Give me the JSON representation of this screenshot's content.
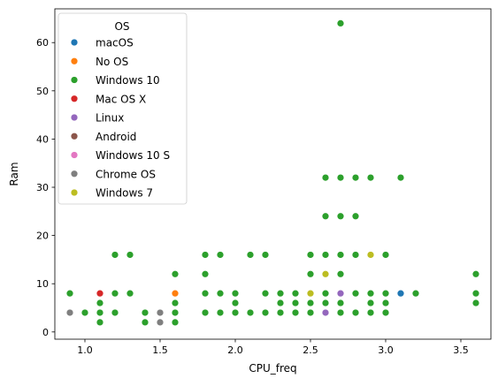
{
  "chart_data": {
    "type": "scatter",
    "title": "",
    "xlabel": "CPU_freq",
    "ylabel": "Ram",
    "xlim": [
      0.8,
      3.7
    ],
    "ylim": [
      -1.5,
      67
    ],
    "xticks": [
      1.0,
      1.5,
      2.0,
      2.5,
      3.0,
      3.5
    ],
    "xtick_labels": [
      "1.0",
      "1.5",
      "2.0",
      "2.5",
      "3.0",
      "3.5"
    ],
    "yticks": [
      0,
      10,
      20,
      30,
      40,
      50,
      60
    ],
    "ytick_labels": [
      "0",
      "10",
      "20",
      "30",
      "40",
      "50",
      "60"
    ],
    "grid": false,
    "legend": {
      "title": "OS",
      "placement": "top-left"
    },
    "series": [
      {
        "name": "macOS",
        "color": "#1f77b4",
        "points": [
          [
            3.1,
            8
          ]
        ]
      },
      {
        "name": "No OS",
        "color": "#ff7f0e",
        "points": [
          [
            1.6,
            8
          ],
          [
            2.5,
            8
          ]
        ]
      },
      {
        "name": "Windows 10",
        "color": "#2ca02c",
        "points": [
          [
            0.9,
            8
          ],
          [
            0.9,
            4
          ],
          [
            1.0,
            4
          ],
          [
            1.1,
            8
          ],
          [
            1.1,
            6
          ],
          [
            1.1,
            4
          ],
          [
            1.1,
            2
          ],
          [
            1.2,
            16
          ],
          [
            1.2,
            8
          ],
          [
            1.2,
            4
          ],
          [
            1.3,
            16
          ],
          [
            1.3,
            8
          ],
          [
            1.4,
            4
          ],
          [
            1.4,
            2
          ],
          [
            1.5,
            4
          ],
          [
            1.6,
            12
          ],
          [
            1.6,
            6
          ],
          [
            1.6,
            4
          ],
          [
            1.6,
            2
          ],
          [
            1.8,
            16
          ],
          [
            1.8,
            12
          ],
          [
            1.8,
            8
          ],
          [
            1.8,
            4
          ],
          [
            1.9,
            16
          ],
          [
            1.9,
            8
          ],
          [
            1.9,
            4
          ],
          [
            2.0,
            8
          ],
          [
            2.0,
            6
          ],
          [
            2.0,
            4
          ],
          [
            2.1,
            16
          ],
          [
            2.1,
            4
          ],
          [
            2.2,
            16
          ],
          [
            2.2,
            8
          ],
          [
            2.2,
            4
          ],
          [
            2.3,
            8
          ],
          [
            2.3,
            6
          ],
          [
            2.3,
            4
          ],
          [
            2.4,
            8
          ],
          [
            2.4,
            6
          ],
          [
            2.4,
            4
          ],
          [
            2.5,
            16
          ],
          [
            2.5,
            12
          ],
          [
            2.5,
            6
          ],
          [
            2.5,
            4
          ],
          [
            2.6,
            32
          ],
          [
            2.6,
            24
          ],
          [
            2.6,
            16
          ],
          [
            2.6,
            8
          ],
          [
            2.6,
            6
          ],
          [
            2.7,
            64
          ],
          [
            2.7,
            32
          ],
          [
            2.7,
            24
          ],
          [
            2.7,
            16
          ],
          [
            2.7,
            12
          ],
          [
            2.7,
            6
          ],
          [
            2.7,
            4
          ],
          [
            2.8,
            32
          ],
          [
            2.8,
            24
          ],
          [
            2.8,
            16
          ],
          [
            2.8,
            8
          ],
          [
            2.8,
            4
          ],
          [
            2.9,
            32
          ],
          [
            2.9,
            8
          ],
          [
            2.9,
            6
          ],
          [
            2.9,
            4
          ],
          [
            3.0,
            16
          ],
          [
            3.0,
            8
          ],
          [
            3.0,
            6
          ],
          [
            3.0,
            4
          ],
          [
            3.1,
            32
          ],
          [
            3.2,
            8
          ],
          [
            3.6,
            12
          ],
          [
            3.6,
            8
          ],
          [
            3.6,
            6
          ]
        ]
      },
      {
        "name": "Mac OS X",
        "color": "#d62728",
        "points": [
          [
            1.1,
            8
          ]
        ]
      },
      {
        "name": "Linux",
        "color": "#9467bd",
        "points": [
          [
            2.6,
            4
          ],
          [
            2.7,
            8
          ]
        ]
      },
      {
        "name": "Android",
        "color": "#8c564b",
        "points": []
      },
      {
        "name": "Windows 10 S",
        "color": "#e377c2",
        "points": []
      },
      {
        "name": "Chrome OS",
        "color": "#7f7f7f",
        "points": [
          [
            0.9,
            4
          ],
          [
            1.5,
            4
          ],
          [
            1.5,
            2
          ]
        ]
      },
      {
        "name": "Windows 7",
        "color": "#bcbd22",
        "points": [
          [
            2.5,
            8
          ],
          [
            2.6,
            12
          ],
          [
            2.9,
            16
          ]
        ]
      }
    ]
  }
}
